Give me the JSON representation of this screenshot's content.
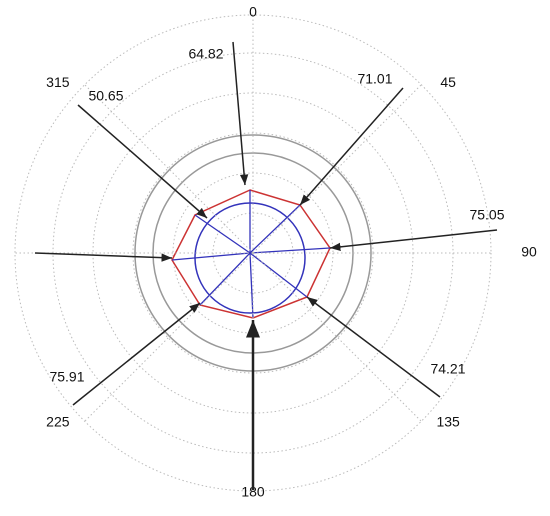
{
  "chart_data": {
    "type": "polar",
    "categories": [
      "0",
      "45",
      "90",
      "135",
      "180",
      "225",
      null,
      "315"
    ],
    "values": [
      64.82,
      71.01,
      75.05,
      74.21,
      null,
      75.91,
      null,
      50.65
    ],
    "color": "#222222"
  }
}
